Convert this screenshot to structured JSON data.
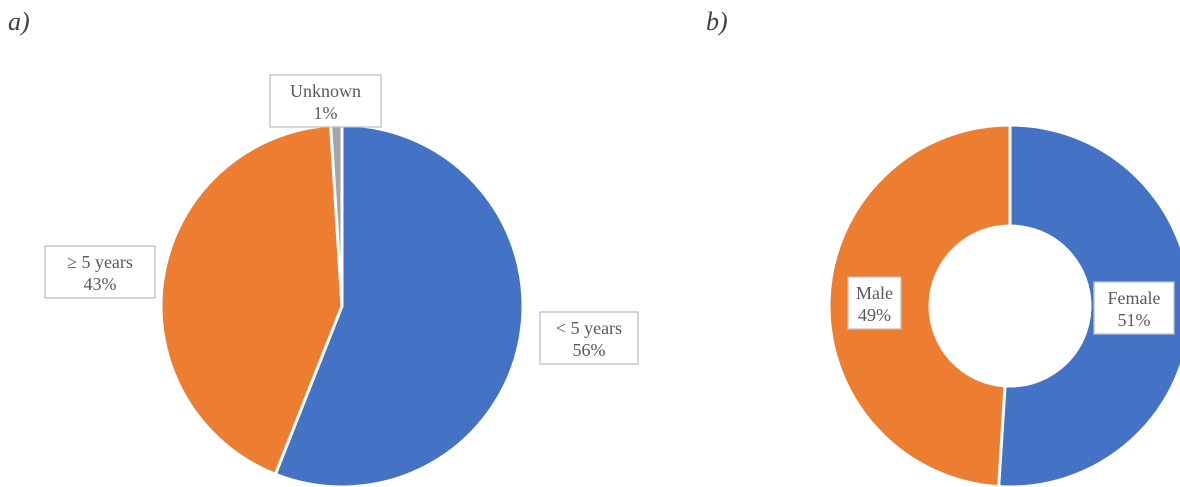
{
  "chart_data": [
    {
      "type": "pie",
      "title": "a)",
      "categories": [
        "< 5 years",
        "≥ 5 years",
        "Unknown"
      ],
      "values": [
        56,
        43,
        1
      ],
      "value_labels": [
        "56%",
        "43%",
        "1%"
      ],
      "colors": [
        "#4472c4",
        "#ed7d31",
        "#a5a5a5"
      ]
    },
    {
      "type": "donut",
      "title": "b)",
      "categories": [
        "Female",
        "Male"
      ],
      "values": [
        51,
        49
      ],
      "value_labels": [
        "51%",
        "49%"
      ],
      "colors": [
        "#4472c4",
        "#ed7d31"
      ]
    }
  ]
}
